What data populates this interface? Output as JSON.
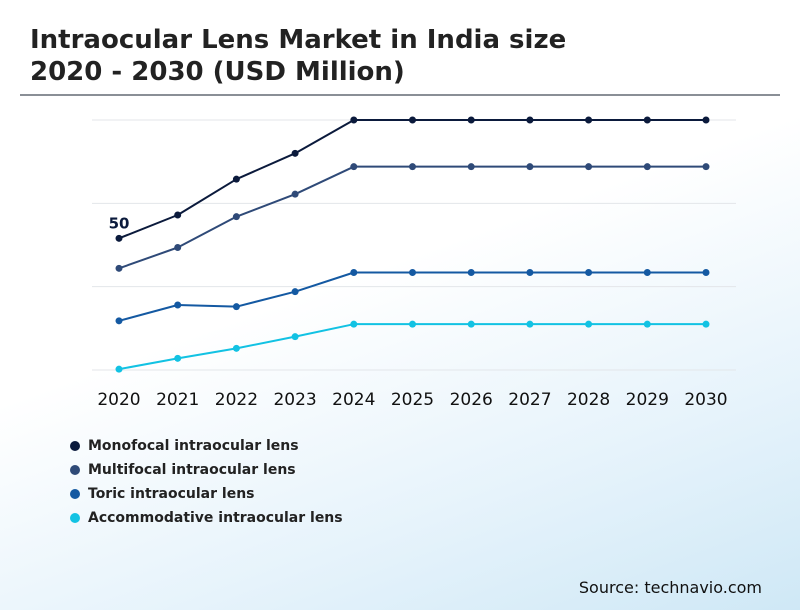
{
  "title": {
    "line1": "Intraocular Lens Market in India size",
    "line2": "2020 - 2030 (USD Million)"
  },
  "source": "Source: technavio.com",
  "colors": {
    "monofocal": "#0b1a3c",
    "multifocal": "#2f4a78",
    "toric": "#1459a2",
    "accommodative": "#12c2e3",
    "grid": "#e3e6ea"
  },
  "chart_data": {
    "type": "line",
    "title": "Intraocular Lens Market in India size 2020 - 2030 (USD Million)",
    "xlabel": "",
    "ylabel": "",
    "ylim": [
      0,
      150
    ],
    "grid": true,
    "legend_position": "bottom-left",
    "categories": [
      "2020",
      "2021",
      "2022",
      "2023",
      "2024",
      "2025",
      "2026",
      "2027",
      "2028",
      "2029",
      "2030"
    ],
    "series": [
      {
        "name": "Monofocal intraocular lens",
        "color": "#0b1a3c",
        "values": [
          79,
          93,
          114.5,
          130,
          150,
          150,
          150,
          150,
          150,
          150,
          150
        ]
      },
      {
        "name": "Multifocal intraocular lens",
        "color": "#2f4a78",
        "values": [
          61,
          73.5,
          92,
          105.5,
          122,
          122,
          122,
          122,
          122,
          122,
          122
        ]
      },
      {
        "name": "Toric intraocular lens",
        "color": "#1459a2",
        "values": [
          29.5,
          39,
          38,
          47,
          58.5,
          58.5,
          58.5,
          58.5,
          58.5,
          58.5,
          58.5
        ]
      },
      {
        "name": "Accommodative intraocular lens",
        "color": "#12c2e3",
        "values": [
          0.5,
          7,
          13,
          20,
          27.5,
          27.5,
          27.5,
          27.5,
          27.5,
          27.5,
          27.5
        ]
      }
    ],
    "annotations": [
      {
        "series": 0,
        "index": 0,
        "text": "50"
      }
    ]
  }
}
